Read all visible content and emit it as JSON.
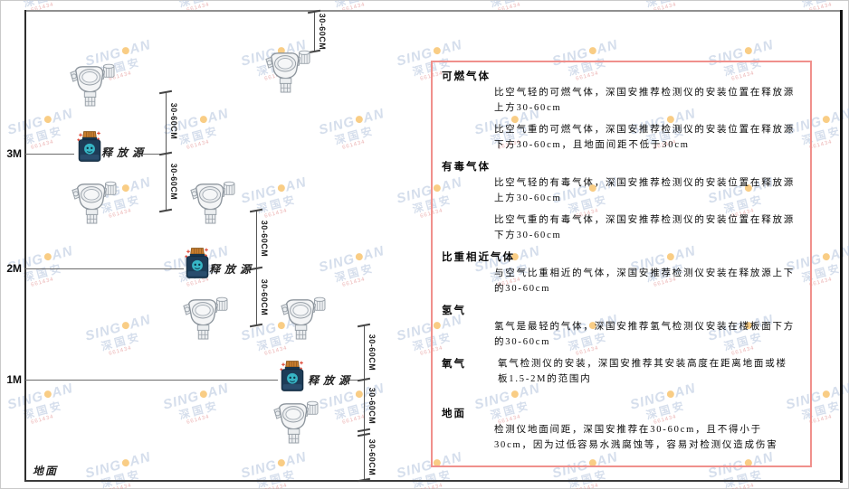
{
  "watermark": {
    "en_left": "SING",
    "en_right": "AN",
    "cn": "深国安",
    "red_text": "661434",
    "text_color": "#b4c4dd",
    "dot_color": "#f5a623",
    "red_color": "#dd7777"
  },
  "diagram": {
    "axis": {
      "labels": [
        "3M",
        "2M",
        "1M"
      ],
      "ground_label": "地面"
    },
    "source_label": "释放源",
    "dim_label": "30-60CM"
  },
  "panel": {
    "border_color": "#f0908c",
    "sections": [
      {
        "heading": "可燃气体",
        "paras": [
          "比空气轻的可燃气体，深国安推荐检测仪的安装位置在释放源上方30-60cm",
          "比空气重的可燃气体，深国安推荐检测仪的安装位置在释放源下方30-60cm，且地面间距不低于30cm"
        ]
      },
      {
        "heading": "有毒气体",
        "paras": [
          "比空气轻的有毒气体，深国安推荐检测仪的安装位置在释放源上方30-60cm",
          "比空气重的有毒气体，深国安推荐检测仪的安装位置在释放源下方30-60cm"
        ]
      },
      {
        "heading": "比重相近气体",
        "paras": [
          "与空气比重相近的气体，深国安推荐检测仪安装在释放源上下的30-60cm"
        ]
      },
      {
        "heading": "氢气",
        "paras": [
          "氢气是最轻的气体，深国安推荐氢气检测仪安装在楼板面下方的30-60cm"
        ]
      },
      {
        "heading": "氧气",
        "paras": [
          "氧气检测仪的安装，深国安推荐其安装高度在距离地面或楼板1.5-2M的范围内"
        ]
      },
      {
        "heading": "地面",
        "paras": [
          "检测仪地面间距，深国安推荐在30-60cm，且不得小于30cm，因为过低容易水溅腐蚀等，容易对检测仪造成伤害"
        ]
      }
    ]
  }
}
